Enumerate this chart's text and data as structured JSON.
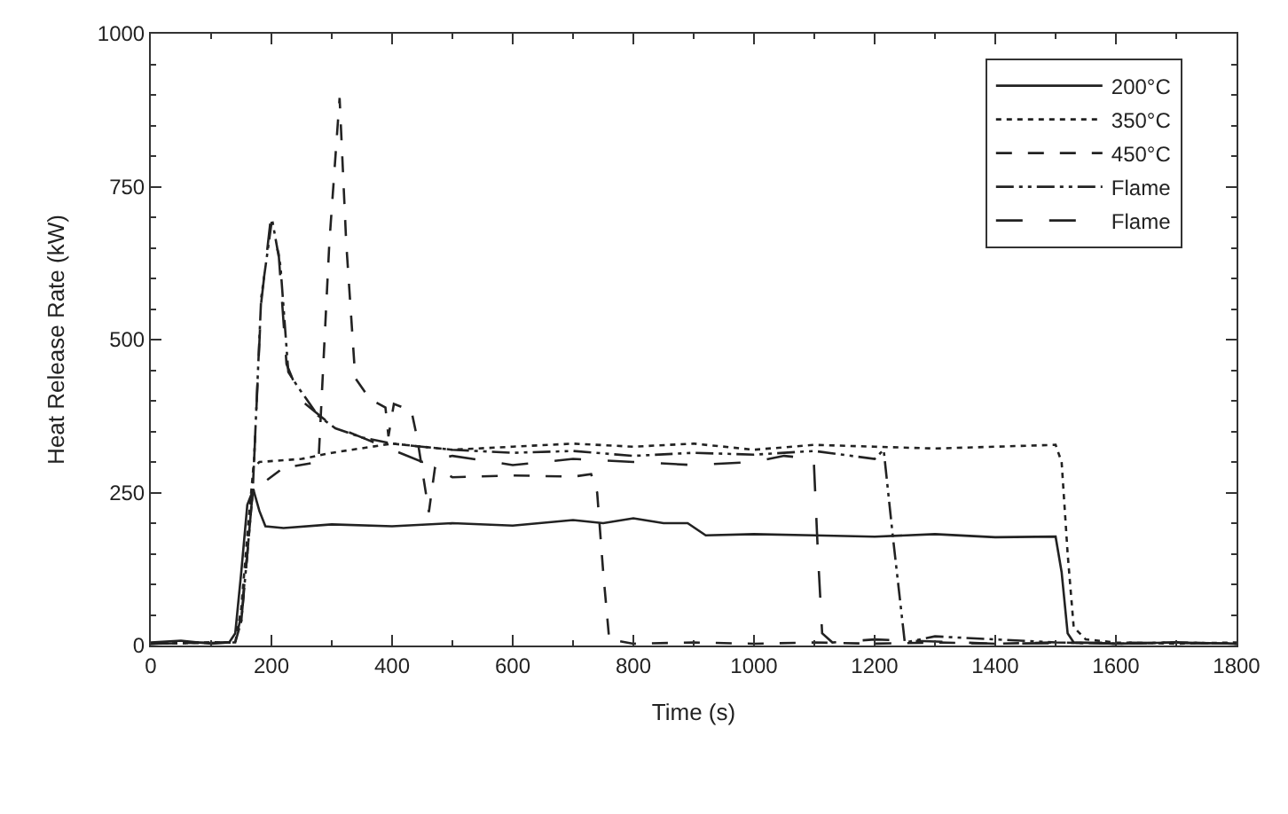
{
  "chart_data": {
    "type": "line",
    "xlabel": "Time (s)",
    "ylabel": "Heat Release Rate (kW)",
    "xlim": [
      0,
      1800
    ],
    "xticks": [
      0,
      200,
      400,
      600,
      800,
      1000,
      1200,
      1400,
      1600,
      1800
    ],
    "ylim": [
      0,
      1000
    ],
    "yticks": [
      0,
      250,
      500,
      750,
      1000
    ],
    "legend": "top right",
    "marker": "none",
    "series": [
      {
        "name": "200°C",
        "color": "#222222",
        "line_style": "solid",
        "x": [
          0,
          50,
          100,
          130,
          140,
          150,
          160,
          170,
          180,
          190,
          220,
          300,
          400,
          500,
          600,
          700,
          750,
          800,
          850,
          890,
          920,
          1000,
          1100,
          1200,
          1300,
          1400,
          1500,
          1510,
          1520,
          1530,
          1600,
          1700,
          1800
        ],
        "values": [
          5,
          8,
          3,
          5,
          20,
          120,
          230,
          255,
          220,
          195,
          192,
          198,
          195,
          200,
          196,
          205,
          200,
          208,
          200,
          200,
          180,
          182,
          180,
          178,
          182,
          177,
          178,
          120,
          20,
          5,
          3,
          5,
          3
        ]
      },
      {
        "name": "350°C",
        "color": "#222222",
        "line_style": "dotted",
        "x": [
          0,
          100,
          140,
          150,
          160,
          170,
          180,
          250,
          300,
          400,
          500,
          600,
          700,
          800,
          900,
          1000,
          1100,
          1200,
          1300,
          1400,
          1500,
          1510,
          1520,
          1530,
          1550,
          1600,
          1700,
          1800
        ],
        "values": [
          3,
          5,
          5,
          60,
          180,
          290,
          300,
          305,
          315,
          330,
          320,
          325,
          330,
          325,
          330,
          320,
          328,
          325,
          322,
          325,
          328,
          300,
          150,
          30,
          10,
          5,
          3,
          5
        ]
      },
      {
        "name": "450°C",
        "color": "#222222",
        "line_style": "dashed",
        "x": [
          0,
          100,
          140,
          150,
          160,
          169,
          219,
          278,
          296,
          313,
          324,
          339,
          363,
          389,
          394,
          403,
          432,
          442,
          461,
          471,
          500,
          600,
          700,
          730,
          740,
          750,
          760,
          800,
          900,
          1000,
          1100,
          1200,
          1300,
          1400,
          1500,
          1600,
          1700,
          1800
        ],
        "values": [
          3,
          5,
          5,
          50,
          150,
          253,
          290,
          300,
          658,
          895,
          658,
          437,
          403,
          389,
          342,
          395,
          384,
          337,
          218,
          290,
          275,
          278,
          276,
          280,
          250,
          120,
          10,
          3,
          5,
          3,
          5,
          3,
          5,
          3,
          5,
          3,
          5,
          3
        ]
      },
      {
        "name": "Flame",
        "color": "#222222",
        "line_style": "dashdotdot",
        "x": [
          0,
          100,
          140,
          150,
          160,
          169,
          183,
          201,
          215,
          228,
          243,
          277,
          306,
          350,
          400,
          500,
          600,
          700,
          800,
          900,
          1000,
          1100,
          1200,
          1215,
          1230,
          1250,
          1300,
          1400,
          1500,
          1600,
          1700,
          1800
        ],
        "values": [
          3,
          5,
          5,
          40,
          150,
          253,
          568,
          697,
          620,
          447,
          424,
          376,
          355,
          340,
          330,
          320,
          315,
          318,
          310,
          315,
          312,
          318,
          305,
          320,
          180,
          5,
          15,
          10,
          5,
          3,
          5,
          3
        ]
      },
      {
        "name": "Flame",
        "color": "#222222",
        "line_style": "longdashed",
        "x": [
          0,
          140,
          150,
          160,
          169,
          183,
          198,
          212,
          225,
          250,
          300,
          350,
          400,
          450,
          500,
          600,
          700,
          800,
          900,
          1000,
          1050,
          1099,
          1106,
          1113,
          1130,
          1200,
          1400,
          1600,
          1800
        ],
        "values": [
          3,
          5,
          40,
          150,
          253,
          560,
          690,
          640,
          460,
          400,
          360,
          340,
          320,
          300,
          310,
          295,
          305,
          300,
          295,
          300,
          310,
          305,
          150,
          20,
          5,
          10,
          3,
          5,
          3
        ]
      }
    ]
  }
}
